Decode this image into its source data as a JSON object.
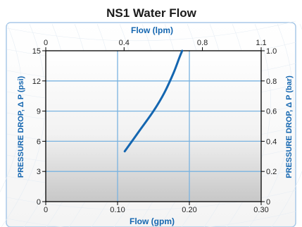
{
  "chart_data": {
    "type": "line",
    "title": "NS1 Water Flow",
    "x_bottom": {
      "label": "Flow (gpm)",
      "range": [
        0,
        0.3
      ],
      "ticks": [
        0,
        0.1,
        0.2,
        0.3
      ],
      "tick_labels": [
        "0",
        "0.10",
        "0.20",
        "0.30"
      ]
    },
    "x_top": {
      "label": "Flow (lpm)",
      "range": [
        0,
        1.1
      ],
      "ticks": [
        0,
        0.4,
        0.8,
        1.1
      ],
      "tick_labels": [
        "0",
        "0.4",
        "0.8",
        "1.1"
      ]
    },
    "y_left": {
      "label": "PRESSURE DROP, Δ P (psi)",
      "range": [
        0,
        15
      ],
      "ticks": [
        0,
        3,
        6,
        9,
        12,
        15
      ],
      "tick_labels": [
        "0",
        "3",
        "6",
        "9",
        "12",
        "15"
      ]
    },
    "y_right": {
      "label": "PRESSURE DROP, Δ P (bar)",
      "range": [
        0,
        1.0
      ],
      "ticks": [
        0,
        0.2,
        0.4,
        0.6,
        0.8,
        1.0
      ],
      "tick_labels": [
        "0",
        "0.2",
        "0.4",
        "0.6",
        "0.8",
        "1.0"
      ]
    },
    "grid": true,
    "series": [
      {
        "color": "#1466b0",
        "x": [
          0.11,
          0.13,
          0.15,
          0.165,
          0.178,
          0.186,
          0.19
        ],
        "y": [
          5.0,
          7.0,
          9.0,
          10.8,
          12.8,
          14.3,
          15.0
        ]
      }
    ],
    "colors": {
      "accent": "#1466b0",
      "grid": "#7ab3e0",
      "frame": "#000000"
    }
  }
}
